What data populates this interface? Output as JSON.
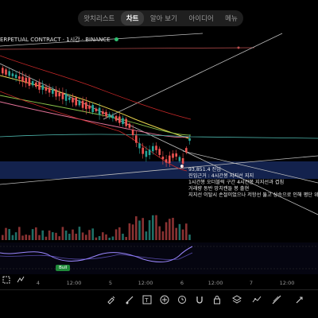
{
  "tabs": [
    {
      "label": "왓치리스트",
      "active": false
    },
    {
      "label": "차트",
      "active": true
    },
    {
      "label": "알아 보기",
      "active": false
    },
    {
      "label": "아이디어",
      "active": false
    },
    {
      "label": "메뉴",
      "active": false
    }
  ],
  "chart": {
    "title": "ERPETUAL CONTRACT · 1시간 · BINANCE",
    "annotations": [
      "93,851.4 진입",
      "진입근거 : 4시간봉 지지선 지지",
      "1시간봉 오더블럭 구간 4시간봉 지지선과 겹침",
      "거래량 동반 망치캔들 봉 출현",
      "지지선 이탈시 손절이었으나 저항선 뚫고 상승으로 인해 평단 위"
    ],
    "bull_label": "Bull",
    "x_labels": [
      "4",
      "12:00",
      "5",
      "12:00",
      "6",
      "12:00",
      "7",
      "12:00"
    ]
  },
  "toolbar": {
    "icons": [
      "undo-icon",
      "crosshair-icon",
      "brush-icon",
      "text-tool-icon",
      "pattern-icon",
      "add-icon",
      "alert-clock-icon",
      "magnet-icon",
      "lock-icon",
      "layers-icon",
      "indicator-icon",
      "trend-icon",
      "share-icon"
    ]
  },
  "left_icons": [
    "frame-icon",
    "indicator-toggle-icon"
  ],
  "colors": {
    "up": "#26a69a",
    "down": "#ef5350",
    "support_zone": "#1a2f66",
    "osc": "#7b68ee",
    "accent_green": "#2fbf71"
  }
}
